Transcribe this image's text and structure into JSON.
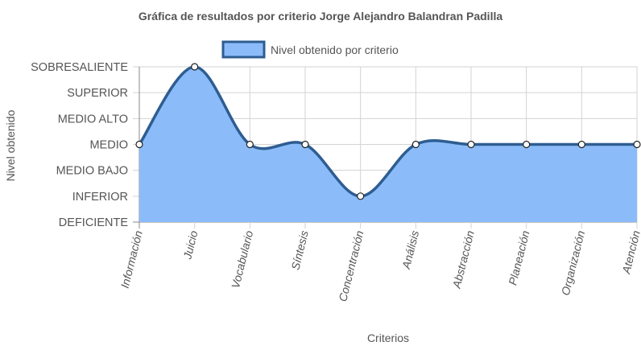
{
  "chart_data": {
    "type": "area",
    "title": "Gráfica de resultados por criterio Jorge Alejandro Balandran Padilla",
    "xlabel": "Criterios",
    "ylabel": "Nivel obtenido",
    "y_levels": [
      "DEFICIENTE",
      "INFERIOR",
      "MEDIO BAJO",
      "MEDIO",
      "MEDIO ALTO",
      "SUPERIOR",
      "SOBRESALIENTE"
    ],
    "ylim": [
      0,
      6
    ],
    "categories": [
      "Información",
      "Juicio",
      "Vocabulario",
      "Síntesis",
      "Concentración",
      "Análisis",
      "Abstracción",
      "Planeación",
      "Organización",
      "Atención"
    ],
    "series": [
      {
        "name": "Nivel obtenido por criterio",
        "values": [
          3,
          6,
          3,
          3,
          1,
          3,
          3,
          3,
          3,
          3
        ]
      }
    ],
    "legend_position": "top",
    "grid": true,
    "colors": {
      "fill": "#8bbcf9",
      "line": "#2e5d91",
      "grid": "#d3d3d3",
      "axis": "#888888",
      "point_fill": "#ffffff"
    }
  }
}
